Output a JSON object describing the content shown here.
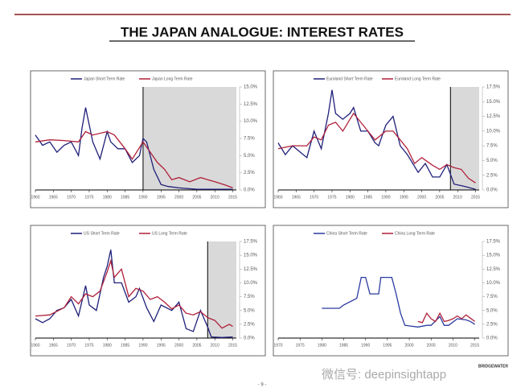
{
  "title": "THE JAPAN ANALOGUE: INTEREST RATES",
  "brand": "BRIDGEWATER",
  "page_number": "- 9 -",
  "watermark": "微信号: deepinsightapp",
  "chart_data": [
    {
      "type": "line",
      "xlim": [
        1960,
        2016
      ],
      "xticks": [
        1960,
        1965,
        1970,
        1975,
        1980,
        1985,
        1990,
        1995,
        2000,
        2005,
        2010,
        2015
      ],
      "ylim": [
        0,
        15
      ],
      "yticks": [
        {
          "value": 0,
          "label": "0.0%"
        },
        {
          "value": 2.5,
          "label": "2.5%"
        },
        {
          "value": 5,
          "label": "5.0%"
        },
        {
          "value": 7.5,
          "label": "7.5%"
        },
        {
          "value": 10,
          "label": "10.0%"
        },
        {
          "value": 12.5,
          "label": "12.5%"
        },
        {
          "value": 15,
          "label": "15.0%"
        }
      ],
      "shade_start": 1990,
      "series": [
        {
          "name": "Japan Short Term Rate",
          "color": "#1f1f7a",
          "x": [
            1960,
            1962,
            1964,
            1966,
            1968,
            1970,
            1972,
            1973,
            1974,
            1976,
            1978,
            1980,
            1981,
            1983,
            1985,
            1987,
            1989,
            1990,
            1991,
            1993,
            1995,
            1997,
            2000,
            2005,
            2010,
            2015
          ],
          "values": [
            8,
            6.5,
            7,
            5.5,
            6.5,
            7,
            5,
            9,
            12,
            7,
            4.5,
            8.5,
            7,
            6,
            6,
            4,
            5,
            7.5,
            7,
            3,
            0.8,
            0.5,
            0.3,
            0.1,
            0.1,
            0.1
          ]
        },
        {
          "name": "Japan Long Term Rate",
          "color": "#b0203a",
          "x": [
            1960,
            1964,
            1968,
            1972,
            1974,
            1976,
            1980,
            1982,
            1985,
            1987,
            1990,
            1992,
            1994,
            1996,
            1998,
            2000,
            2003,
            2006,
            2008,
            2010,
            2013,
            2015
          ],
          "values": [
            7,
            7.3,
            7.2,
            7,
            8.5,
            8,
            8.5,
            8,
            6,
            4.5,
            7,
            5.5,
            4,
            3,
            1.5,
            1.8,
            1.2,
            1.8,
            1.5,
            1.2,
            0.7,
            0.3
          ]
        }
      ]
    },
    {
      "type": "line",
      "xlim": [
        1960,
        2016
      ],
      "xticks": [
        1960,
        1965,
        1970,
        1975,
        1980,
        1985,
        1990,
        1995,
        2000,
        2005,
        2010,
        2015
      ],
      "ylim": [
        0,
        17.5
      ],
      "yticks": [
        {
          "value": 0,
          "label": "0.0%"
        },
        {
          "value": 2.5,
          "label": "2.5%"
        },
        {
          "value": 5,
          "label": "5.0%"
        },
        {
          "value": 7.5,
          "label": "7.5%"
        },
        {
          "value": 10,
          "label": "10.0%"
        },
        {
          "value": 12.5,
          "label": "12.5%"
        },
        {
          "value": 15,
          "label": "15.0%"
        },
        {
          "value": 17.5,
          "label": "17.5%"
        }
      ],
      "shade_start": 2008,
      "series": [
        {
          "name": "Euroland Short Term Rate",
          "color": "#1f1f7a",
          "x": [
            1960,
            1962,
            1964,
            1966,
            1968,
            1970,
            1972,
            1974,
            1975,
            1976,
            1978,
            1980,
            1981,
            1983,
            1985,
            1987,
            1988,
            1990,
            1992,
            1994,
            1996,
            1999,
            2001,
            2003,
            2005,
            2007,
            2009,
            2012,
            2015
          ],
          "values": [
            8,
            6,
            7.5,
            6.5,
            5.5,
            10,
            7,
            13,
            17,
            13,
            12,
            13,
            14,
            10,
            10,
            8,
            7.5,
            11,
            12.5,
            7.5,
            6,
            3,
            4.5,
            2.2,
            2.2,
            4.3,
            1,
            0.6,
            0.1
          ]
        },
        {
          "name": "Euroland Long Term Rate",
          "color": "#b0203a",
          "x": [
            1960,
            1964,
            1968,
            1970,
            1972,
            1974,
            1976,
            1978,
            1980,
            1981,
            1983,
            1985,
            1987,
            1990,
            1992,
            1994,
            1996,
            1998,
            2000,
            2003,
            2005,
            2007,
            2009,
            2011,
            2013,
            2015
          ],
          "values": [
            7,
            7.5,
            7.5,
            9,
            8.5,
            11,
            11.5,
            10,
            12,
            13,
            11.5,
            10,
            8.5,
            10,
            10,
            8.5,
            7,
            4.5,
            5.5,
            4.2,
            3.5,
            4.3,
            3.8,
            3.5,
            2,
            1.2
          ]
        }
      ]
    },
    {
      "type": "line",
      "xlim": [
        1960,
        2016
      ],
      "xticks": [
        1960,
        1965,
        1970,
        1975,
        1980,
        1985,
        1990,
        1995,
        2000,
        2005,
        2010,
        2015
      ],
      "ylim": [
        0,
        17.5
      ],
      "yticks": [
        {
          "value": 0,
          "label": "0.0%"
        },
        {
          "value": 2.5,
          "label": "2.5%"
        },
        {
          "value": 5,
          "label": "5.0%"
        },
        {
          "value": 7.5,
          "label": "7.5%"
        },
        {
          "value": 10,
          "label": "10.0%"
        },
        {
          "value": 12.5,
          "label": "12.5%"
        },
        {
          "value": 15,
          "label": "15.0%"
        },
        {
          "value": 17.5,
          "label": "17.5%"
        }
      ],
      "shade_start": 2008,
      "series": [
        {
          "name": "US Short Term Rate",
          "color": "#1f1f7a",
          "x": [
            1960,
            1962,
            1964,
            1966,
            1968,
            1970,
            1972,
            1974,
            1975,
            1977,
            1979,
            1980,
            1981,
            1982,
            1984,
            1986,
            1988,
            1989,
            1991,
            1993,
            1995,
            1998,
            2000,
            2002,
            2004,
            2006,
            2008,
            2009,
            2012,
            2015
          ],
          "values": [
            3.5,
            2.8,
            3.5,
            5,
            5.5,
            7,
            4,
            9.5,
            6,
            5,
            11,
            13,
            16,
            10,
            10,
            6.5,
            7.5,
            9,
            5.5,
            3,
            6,
            5,
            6.5,
            1.7,
            1.2,
            5,
            2,
            0.2,
            0.1,
            0.2
          ]
        },
        {
          "name": "US Long Term Rate",
          "color": "#b0203a",
          "x": [
            1960,
            1964,
            1968,
            1970,
            1972,
            1974,
            1976,
            1978,
            1980,
            1981,
            1982,
            1984,
            1986,
            1988,
            1990,
            1992,
            1994,
            1996,
            1998,
            2000,
            2002,
            2004,
            2006,
            2008,
            2010,
            2012,
            2014,
            2015
          ],
          "values": [
            4,
            4.2,
            5.5,
            7.5,
            6.2,
            8,
            7.5,
            8.5,
            12,
            14,
            11,
            12.5,
            7.5,
            9,
            8.5,
            7,
            7.5,
            6.5,
            5.3,
            6,
            4.5,
            4.2,
            4.8,
            3.7,
            3.2,
            1.8,
            2.5,
            2.1
          ]
        }
      ]
    },
    {
      "type": "line",
      "xlim": [
        1970,
        2016
      ],
      "xticks": [
        1970,
        1975,
        1980,
        1985,
        1990,
        1995,
        2000,
        2005,
        2010,
        2015
      ],
      "ylim": [
        0,
        17.5
      ],
      "yticks": [
        {
          "value": 0,
          "label": "0.0%"
        },
        {
          "value": 2.5,
          "label": "2.5%"
        },
        {
          "value": 5,
          "label": "5.0%"
        },
        {
          "value": 7.5,
          "label": "7.5%"
        },
        {
          "value": 10,
          "label": "10.0%"
        },
        {
          "value": 12.5,
          "label": "12.5%"
        },
        {
          "value": 15,
          "label": "15.0%"
        },
        {
          "value": 17.5,
          "label": "17.5%"
        }
      ],
      "series": [
        {
          "name": "China Short Term Rate",
          "color": "#2a3aa0",
          "x": [
            1980,
            1984,
            1985,
            1988,
            1989,
            1990,
            1991,
            1993,
            1993.5,
            1996,
            1997,
            1998,
            1999,
            2002,
            2004,
            2005,
            2007,
            2008,
            2009,
            2011,
            2013,
            2014,
            2015
          ],
          "values": [
            5.4,
            5.4,
            6,
            7.2,
            11,
            11,
            8,
            8,
            11,
            11,
            8,
            4.5,
            2.3,
            2,
            2.3,
            2.3,
            3.9,
            2.3,
            2.3,
            3.5,
            3.3,
            3,
            2.5
          ]
        },
        {
          "name": "China Long Term Rate",
          "color": "#b0203a",
          "x": [
            2002,
            2003,
            2004,
            2005,
            2006,
            2007,
            2008,
            2009,
            2010,
            2011,
            2012,
            2013,
            2014,
            2015
          ],
          "values": [
            3,
            2.8,
            4.5,
            3.5,
            3,
            4.5,
            3,
            3.2,
            3.5,
            4,
            3.5,
            4.2,
            3.6,
            3
          ]
        }
      ]
    }
  ]
}
